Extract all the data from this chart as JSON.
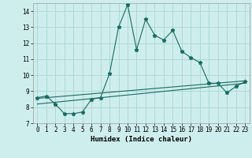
{
  "title": "",
  "xlabel": "Humidex (Indice chaleur)",
  "xlim": [
    -0.5,
    23.5
  ],
  "ylim": [
    7,
    14.5
  ],
  "xticks": [
    0,
    1,
    2,
    3,
    4,
    5,
    6,
    7,
    8,
    9,
    10,
    11,
    12,
    13,
    14,
    15,
    16,
    17,
    18,
    19,
    20,
    21,
    22,
    23
  ],
  "yticks": [
    7,
    8,
    9,
    10,
    11,
    12,
    13,
    14
  ],
  "background_color": "#ceeeed",
  "grid_color": "#aed8d5",
  "line_color": "#1a6b60",
  "line1_x": [
    0,
    1,
    2,
    3,
    4,
    5,
    6,
    7,
    8,
    9,
    10,
    11,
    12,
    13,
    14,
    15,
    16,
    17,
    18,
    19,
    20,
    21,
    22,
    23
  ],
  "line1_y": [
    8.6,
    8.7,
    8.2,
    7.6,
    7.6,
    7.7,
    8.5,
    8.6,
    10.1,
    13.0,
    14.4,
    11.6,
    13.5,
    12.5,
    12.2,
    12.8,
    11.5,
    11.1,
    10.8,
    9.5,
    9.5,
    8.9,
    9.3,
    9.6
  ],
  "line2_x": [
    0,
    23
  ],
  "line2_y": [
    8.55,
    9.65
  ],
  "line3_x": [
    0,
    23
  ],
  "line3_y": [
    8.2,
    9.5
  ],
  "marker": "*",
  "fontsize_xlabel": 6.5,
  "fontsize_ticks": 5.5
}
